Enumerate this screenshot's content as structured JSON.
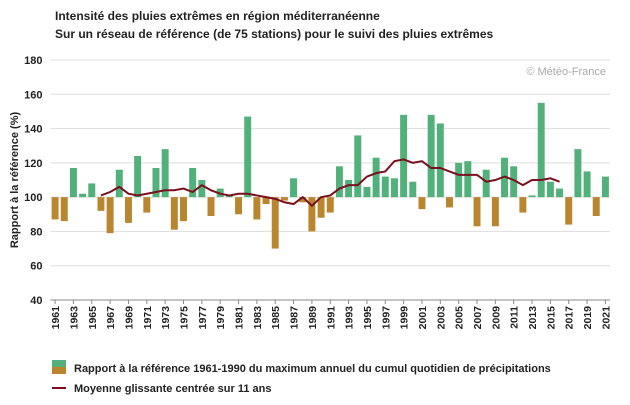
{
  "chart_data": {
    "type": "bar",
    "title": "Intensité des pluies extrêmes en région méditerranéenne",
    "subtitle": "Sur un réseau de référence (de 75 stations) pour le suivi des pluies extrêmes",
    "y_label": "Rapport à la référence (%)",
    "credit": "© Météo-France",
    "x": [
      1961,
      1962,
      1963,
      1964,
      1965,
      1966,
      1967,
      1968,
      1969,
      1970,
      1971,
      1972,
      1973,
      1974,
      1975,
      1976,
      1977,
      1978,
      1979,
      1980,
      1981,
      1982,
      1983,
      1984,
      1985,
      1986,
      1987,
      1988,
      1989,
      1990,
      1991,
      1992,
      1993,
      1994,
      1995,
      1996,
      1997,
      1998,
      1999,
      2000,
      2001,
      2002,
      2003,
      2004,
      2005,
      2006,
      2007,
      2008,
      2009,
      2010,
      2011,
      2012,
      2013,
      2014,
      2015,
      2016,
      2017,
      2018,
      2019,
      2020,
      2021
    ],
    "xlim": [
      1960.5,
      2021.5
    ],
    "xticks": [
      1961,
      1963,
      1965,
      1967,
      1969,
      1971,
      1973,
      1975,
      1977,
      1979,
      1981,
      1983,
      1985,
      1987,
      1989,
      1991,
      1993,
      1995,
      1997,
      1999,
      2001,
      2003,
      2005,
      2007,
      2009,
      2011,
      2013,
      2015,
      2017,
      2019,
      2021
    ],
    "ylim": [
      40,
      180
    ],
    "yticks": [
      40,
      60,
      80,
      100,
      120,
      140,
      160,
      180
    ],
    "grid": true,
    "bar_base": 100,
    "series": [
      {
        "name": "Rapport à la référence 1961-1990 du maximum annuel du cumul quotidien de précipitations",
        "type": "bar",
        "color_above": "#52b07a",
        "color_below": "#b9862f",
        "values": [
          87,
          86,
          117,
          102,
          108,
          92,
          79,
          116,
          85,
          124,
          91,
          117,
          128,
          81,
          86,
          117,
          110,
          89,
          105,
          101,
          90,
          147,
          87,
          96,
          70,
          98,
          111,
          97,
          80,
          88,
          91,
          118,
          110,
          136,
          106,
          123,
          112,
          111,
          148,
          109,
          93,
          148,
          143,
          94,
          120,
          121,
          83,
          116,
          83,
          123,
          118,
          91,
          101,
          155,
          109,
          105,
          84,
          128,
          115,
          89,
          112
        ]
      },
      {
        "name": "Moyenne glissante centrée sur 11 ans",
        "type": "line",
        "color": "#7a0f1e",
        "values": [
          null,
          null,
          null,
          null,
          null,
          101,
          103,
          106,
          102,
          101,
          102,
          103,
          104,
          104,
          105,
          103,
          107,
          104,
          102,
          101,
          102,
          102,
          101,
          100,
          99,
          97,
          96,
          100,
          95,
          100,
          101,
          105,
          107,
          107,
          112,
          114,
          115,
          121,
          122,
          120,
          121,
          117,
          117,
          115,
          113,
          113,
          113,
          109,
          110,
          112,
          110,
          107,
          110,
          110,
          111,
          109,
          null,
          null,
          null,
          null,
          null
        ]
      }
    ]
  }
}
